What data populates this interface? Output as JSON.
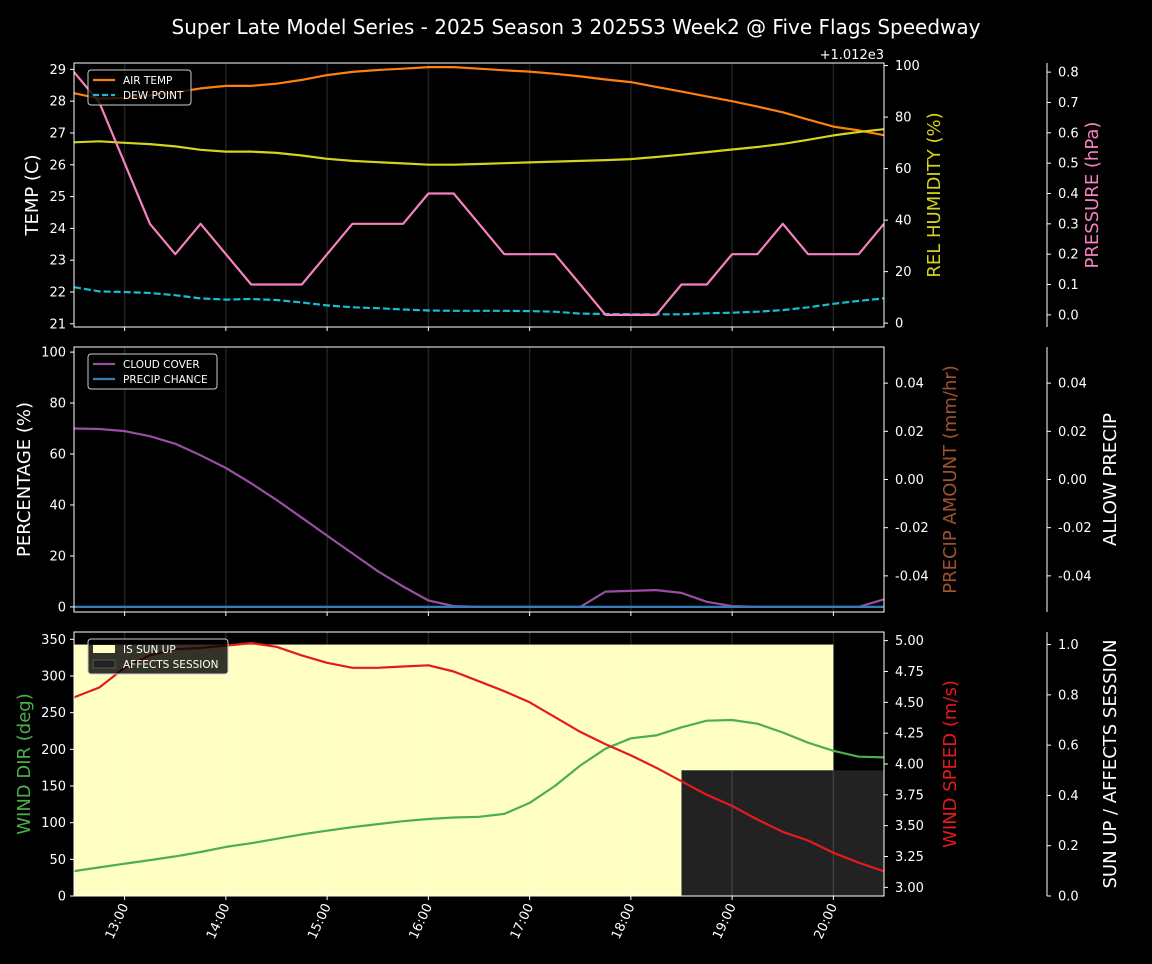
{
  "title": "Super Late Model Series - 2025 Season 3 2025S3 Week2 @ Five Flags Speedway",
  "colors": {
    "background": "#000000",
    "axis": "#ffffff",
    "air_temp": "#ff7f0e",
    "dew_point": "#17becf",
    "rel_humidity": "#d4d41c",
    "pressure": "#f781bf",
    "cloud_cover": "#984ea3",
    "precip_chance": "#377eb8",
    "precip_amount_label": "#a0522d",
    "wind_dir": "#4daf4a",
    "wind_speed": "#e41a1c",
    "sun_up": "#ffffc4",
    "affects_session": "#222222"
  },
  "chart_data": [
    {
      "type": "line",
      "panel": "temperature",
      "x": [
        "12:30",
        "12:45",
        "13:00",
        "13:15",
        "13:30",
        "13:45",
        "14:00",
        "14:15",
        "14:30",
        "14:45",
        "15:00",
        "15:15",
        "15:30",
        "15:45",
        "16:00",
        "16:15",
        "16:30",
        "16:45",
        "17:00",
        "17:15",
        "17:30",
        "17:45",
        "18:00",
        "18:15",
        "18:30",
        "18:45",
        "19:00",
        "19:15",
        "19:30",
        "19:45",
        "20:00",
        "20:15",
        "20:30"
      ],
      "xticks": [
        "13:00",
        "14:00",
        "15:00",
        "16:00",
        "17:00",
        "18:00",
        "19:00",
        "20:00"
      ],
      "legend": {
        "position": "upper-left",
        "entries": [
          "AIR TEMP",
          "DEW POINT"
        ]
      },
      "axes": {
        "left": {
          "label": "TEMP (C)",
          "ylim": [
            20.9,
            29.2
          ],
          "ticks": [
            "21",
            "22",
            "23",
            "24",
            "25",
            "26",
            "27",
            "28",
            "29"
          ]
        },
        "right": {
          "label": "REL HUMIDITY (%)",
          "ylim": [
            -1.5,
            101
          ],
          "ticks": [
            "0",
            "20",
            "40",
            "60",
            "80",
            "100"
          ]
        },
        "far_right": {
          "label": "PRESSURE (hPa)",
          "offset_label": "+1.012e3",
          "ylim": [
            -0.04,
            0.83
          ],
          "ticks": [
            "0.0",
            "0.1",
            "0.2",
            "0.3",
            "0.4",
            "0.5",
            "0.6",
            "0.7",
            "0.8"
          ]
        }
      },
      "series": [
        {
          "name": "AIR TEMP",
          "axis": "left",
          "style": "solid",
          "color_key": "air_temp",
          "values": [
            28.25,
            28.08,
            28.1,
            28.18,
            28.28,
            28.4,
            28.48,
            28.48,
            28.55,
            28.67,
            28.82,
            28.92,
            28.98,
            29.02,
            29.07,
            29.07,
            29.02,
            28.97,
            28.93,
            28.86,
            28.78,
            28.68,
            28.6,
            28.45,
            28.3,
            28.15,
            28.0,
            27.83,
            27.65,
            27.42,
            27.2,
            27.08,
            26.93
          ]
        },
        {
          "name": "DEW POINT",
          "axis": "left",
          "style": "dashed",
          "color_key": "dew_point",
          "values": [
            22.15,
            22.02,
            22.0,
            21.97,
            21.9,
            21.8,
            21.76,
            21.78,
            21.75,
            21.67,
            21.58,
            21.52,
            21.49,
            21.45,
            21.42,
            21.41,
            21.41,
            21.41,
            21.4,
            21.38,
            21.32,
            21.31,
            21.3,
            21.3,
            21.3,
            21.33,
            21.35,
            21.38,
            21.43,
            21.52,
            21.63,
            21.72,
            21.8
          ]
        },
        {
          "axis": "right",
          "style": "solid",
          "color_key": "rel_humidity",
          "values": [
            70.2,
            70.6,
            70.0,
            69.5,
            68.6,
            67.3,
            66.6,
            66.6,
            66.1,
            65.1,
            63.8,
            63.0,
            62.5,
            62.0,
            61.5,
            61.5,
            61.8,
            62.1,
            62.4,
            62.7,
            63.0,
            63.3,
            63.7,
            64.5,
            65.4,
            66.4,
            67.4,
            68.4,
            69.6,
            71.2,
            72.9,
            74.2,
            75.3
          ]
        },
        {
          "axis": "far_right",
          "style": "solid",
          "color_key": "pressure",
          "values": [
            0.8,
            0.7,
            0.5,
            0.3,
            0.2,
            0.3,
            0.2,
            0.1,
            0.1,
            0.1,
            0.2,
            0.3,
            0.3,
            0.3,
            0.4,
            0.4,
            0.3,
            0.2,
            0.2,
            0.2,
            0.1,
            0.0,
            0.0,
            0.0,
            0.1,
            0.1,
            0.2,
            0.2,
            0.3,
            0.2,
            0.2,
            0.2,
            0.3
          ]
        }
      ]
    },
    {
      "type": "line",
      "panel": "precipitation",
      "x": [
        "12:30",
        "12:45",
        "13:00",
        "13:15",
        "13:30",
        "13:45",
        "14:00",
        "14:15",
        "14:30",
        "14:45",
        "15:00",
        "15:15",
        "15:30",
        "15:45",
        "16:00",
        "16:15",
        "16:30",
        "16:45",
        "17:00",
        "17:15",
        "17:30",
        "17:45",
        "18:00",
        "18:15",
        "18:30",
        "18:45",
        "19:00",
        "19:15",
        "19:30",
        "19:45",
        "20:00",
        "20:15",
        "20:30"
      ],
      "legend": {
        "position": "upper-left",
        "entries": [
          "CLOUD COVER",
          "PRECIP CHANCE"
        ]
      },
      "axes": {
        "left": {
          "label": "PERCENTAGE (%)",
          "ylim": [
            -2,
            102
          ],
          "ticks": [
            "0",
            "20",
            "40",
            "60",
            "80",
            "100"
          ]
        },
        "right": {
          "label": "PRECIP AMOUNT (mm/hr)",
          "ylim": [
            -0.055,
            0.055
          ],
          "ticks": [
            "-0.04",
            "-0.02",
            "0.00",
            "0.02",
            "0.04"
          ]
        },
        "far_right": {
          "label": "ALLOW PRECIP",
          "ylim": [
            -0.055,
            0.055
          ],
          "ticks": [
            "-0.04",
            "-0.02",
            "0.00",
            "0.02",
            "0.04"
          ]
        }
      },
      "series": [
        {
          "name": "CLOUD COVER",
          "axis": "left",
          "color_key": "cloud_cover",
          "values": [
            70,
            69.8,
            69,
            67,
            64,
            59.5,
            54.5,
            48.5,
            42,
            35,
            28,
            21,
            14,
            8,
            2.5,
            0.3,
            0,
            0,
            0,
            0,
            0,
            6,
            6.3,
            6.6,
            5.5,
            2,
            0.3,
            0,
            0,
            0,
            0,
            0,
            3
          ]
        },
        {
          "name": "PRECIP CHANCE",
          "axis": "left",
          "color_key": "precip_chance",
          "values": [
            0,
            0,
            0,
            0,
            0,
            0,
            0,
            0,
            0,
            0,
            0,
            0,
            0,
            0,
            0,
            0,
            0,
            0,
            0,
            0,
            0,
            0,
            0,
            0,
            0,
            0,
            0,
            0,
            0,
            0,
            0,
            0,
            0
          ]
        }
      ]
    },
    {
      "type": "line",
      "panel": "wind",
      "x": [
        "12:30",
        "12:45",
        "13:00",
        "13:15",
        "13:30",
        "13:45",
        "14:00",
        "14:15",
        "14:30",
        "14:45",
        "15:00",
        "15:15",
        "15:30",
        "15:45",
        "16:00",
        "16:15",
        "16:30",
        "16:45",
        "17:00",
        "17:15",
        "17:30",
        "17:45",
        "18:00",
        "18:15",
        "18:30",
        "18:45",
        "19:00",
        "19:15",
        "19:30",
        "19:45",
        "20:00",
        "20:15",
        "20:30"
      ],
      "legend": {
        "position": "upper-left",
        "entries": [
          "IS SUN UP",
          "AFFECTS SESSION"
        ]
      },
      "axes": {
        "left": {
          "label": "WIND DIR (deg)",
          "ylim": [
            0,
            360
          ],
          "ticks": [
            "0",
            "50",
            "100",
            "150",
            "200",
            "250",
            "300",
            "350"
          ]
        },
        "right": {
          "label": "WIND SPEED (m/s)",
          "ylim": [
            2.93,
            5.07
          ],
          "ticks": [
            "3.00",
            "3.25",
            "3.50",
            "3.75",
            "4.00",
            "4.25",
            "4.50",
            "4.75",
            "5.00"
          ]
        },
        "far_right": {
          "label": "SUN UP / AFFECTS SESSION",
          "ylim": [
            0,
            1.05
          ],
          "ticks": [
            "0.0",
            "0.2",
            "0.4",
            "0.6",
            "0.8",
            "1.0"
          ]
        }
      },
      "bands": [
        {
          "name": "IS SUN UP",
          "from": "12:30",
          "to": "20:00",
          "value": 1.0,
          "color_key": "sun_up"
        },
        {
          "name": "AFFECTS SESSION",
          "from": "18:30",
          "to": "20:30",
          "value": 0.5,
          "color_key": "affects_session"
        }
      ],
      "series": [
        {
          "axis": "left",
          "color_key": "wind_dir",
          "values": [
            34,
            39,
            44,
            49,
            54,
            60,
            67,
            72,
            78,
            84,
            89,
            94,
            98,
            102,
            105,
            107,
            108,
            112,
            127,
            150,
            178,
            201,
            215,
            219,
            230,
            239,
            240,
            235,
            223,
            209,
            198,
            190,
            189
          ]
        },
        {
          "axis": "right",
          "color_key": "wind_speed",
          "values": [
            4.54,
            4.62,
            4.78,
            4.88,
            4.93,
            4.94,
            4.96,
            4.98,
            4.95,
            4.88,
            4.82,
            4.78,
            4.78,
            4.79,
            4.8,
            4.75,
            4.67,
            4.59,
            4.5,
            4.38,
            4.26,
            4.16,
            4.07,
            3.97,
            3.86,
            3.75,
            3.66,
            3.55,
            3.45,
            3.38,
            3.28,
            3.2,
            3.13
          ]
        }
      ]
    }
  ]
}
